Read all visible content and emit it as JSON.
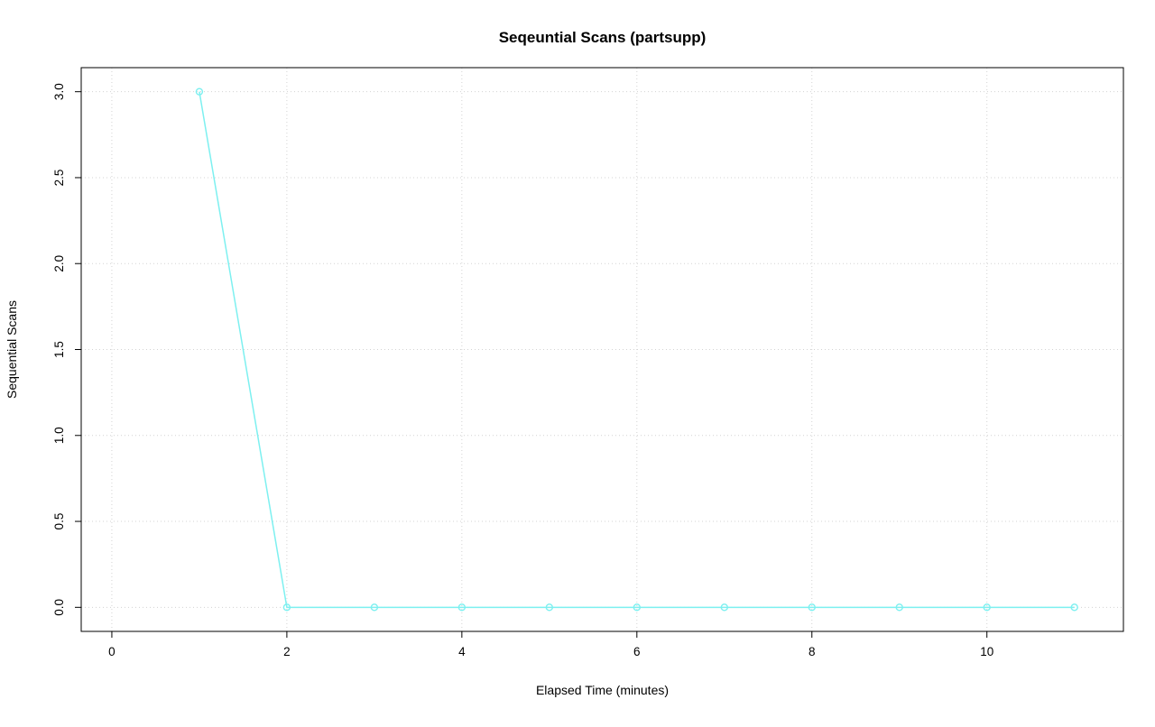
{
  "chart_data": {
    "type": "line",
    "title": "Seqeuntial Scans (partsupp)",
    "xlabel": "Elapsed Time (minutes)",
    "ylabel": "Sequential Scans",
    "x": [
      1,
      2,
      3,
      4,
      5,
      6,
      7,
      8,
      9,
      10,
      11
    ],
    "y": [
      3,
      0,
      0,
      0,
      0,
      0,
      0,
      0,
      0,
      0,
      0
    ],
    "xticks": [
      0,
      2,
      4,
      6,
      8,
      10
    ],
    "xtick_labels": [
      "0",
      "2",
      "4",
      "6",
      "8",
      "10"
    ],
    "yticks": [
      0.0,
      0.5,
      1.0,
      1.5,
      2.0,
      2.5,
      3.0
    ],
    "ytick_labels": [
      "0.0",
      "0.5",
      "1.0",
      "1.5",
      "2.0",
      "2.5",
      "3.0"
    ],
    "xlim": [
      -0.35,
      11.56
    ],
    "ylim": [
      -0.14,
      3.14
    ],
    "grid": true,
    "legend": null,
    "marker": "open-circle",
    "colors": {
      "series": "#7DF0F0",
      "grid": "#D3D3D3",
      "axis": "#000000",
      "background": "#FFFFFF"
    }
  }
}
